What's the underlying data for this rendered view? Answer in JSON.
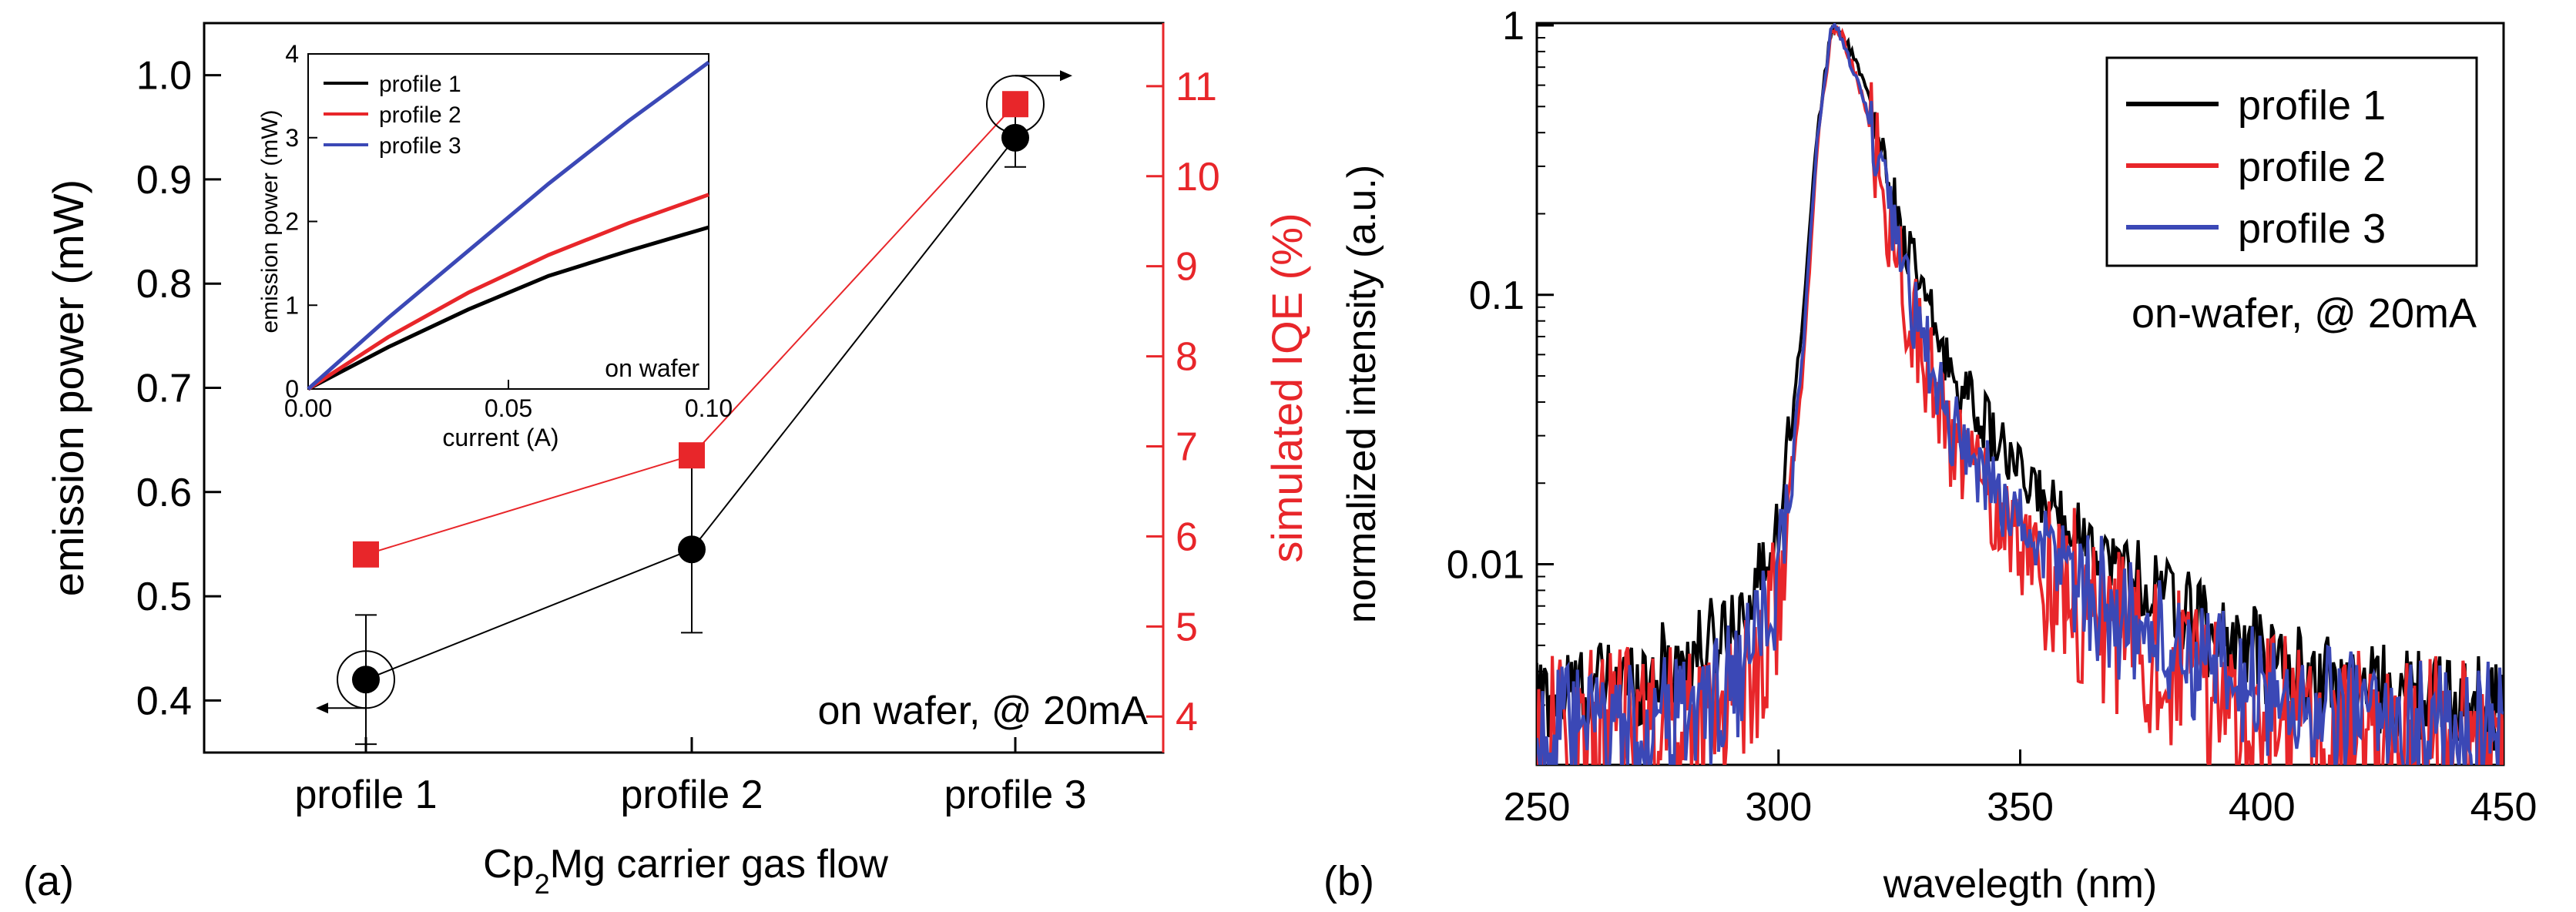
{
  "panel_a": {
    "panel_label": "(a)",
    "chart_data": {
      "type": "scatter",
      "categories": [
        "profile 1",
        "profile 2",
        "profile 3"
      ],
      "xlabel": "Cp2Mg carrier gas flow",
      "ylabel": "emission power (mW)",
      "y2label": "simulated IQE (%)",
      "ylim": [
        0.35,
        1.05
      ],
      "y2lim": [
        3.6,
        11.7
      ],
      "yticks": [
        "0.4",
        "0.5",
        "0.6",
        "0.7",
        "0.8",
        "0.9",
        "1.0"
      ],
      "y2ticks": [
        "4",
        "5",
        "6",
        "7",
        "8",
        "9",
        "10",
        "11"
      ],
      "annotation": "on wafer, @ 20mA",
      "series": [
        {
          "axis": "left",
          "color": "#000000",
          "marker": "circle",
          "values": [
            0.42,
            0.545,
            0.94
          ],
          "errors": [
            0.062,
            0.08,
            0.028
          ]
        },
        {
          "axis": "right",
          "color": "#e8262a",
          "marker": "square",
          "values": [
            5.8,
            6.9,
            10.8
          ]
        }
      ]
    },
    "inset": {
      "chart_data": {
        "type": "line",
        "xlabel": "current (A)",
        "ylabel": "emission power (mW)",
        "xlim": [
          0,
          0.1
        ],
        "ylim": [
          0,
          4
        ],
        "xticks": [
          "0.00",
          "0.05",
          "0.10"
        ],
        "yticks": [
          "0",
          "1",
          "2",
          "3",
          "4"
        ],
        "annotation": "on wafer",
        "series": [
          {
            "name": "profile 1",
            "color": "#000000",
            "x": [
              0,
              0.02,
              0.04,
              0.06,
              0.08,
              0.1
            ],
            "y": [
              0,
              0.5,
              0.95,
              1.35,
              1.65,
              1.93
            ]
          },
          {
            "name": "profile 2",
            "color": "#e8262a",
            "x": [
              0,
              0.02,
              0.04,
              0.06,
              0.08,
              0.1
            ],
            "y": [
              0,
              0.62,
              1.15,
              1.6,
              1.98,
              2.32
            ]
          },
          {
            "name": "profile 3",
            "color": "#3b48b6",
            "x": [
              0,
              0.02,
              0.04,
              0.06,
              0.08,
              0.1
            ],
            "y": [
              0,
              0.85,
              1.65,
              2.45,
              3.2,
              3.9
            ]
          }
        ]
      }
    }
  },
  "panel_b": {
    "panel_label": "(b)",
    "chart_data": {
      "type": "line",
      "xlabel": "wavelegth (nm)",
      "ylabel": "normalized intensity (a.u.)",
      "xlim": [
        250,
        450
      ],
      "ylim": [
        0.0018,
        1.02
      ],
      "yscale": "log",
      "xticks": [
        "250",
        "300",
        "350",
        "400",
        "450"
      ],
      "yticks": [
        "0.01",
        "0.1",
        "1"
      ],
      "annotation": "on-wafer, @ 20mA",
      "legend": "top-right",
      "series": [
        {
          "name": "profile 1",
          "color": "#000000",
          "noise": 0.11,
          "x": [
            250,
            270,
            285,
            295,
            300,
            305,
            308,
            311,
            313,
            318,
            325,
            335,
            350,
            370,
            390,
            410,
            430,
            450
          ],
          "y": [
            0.0032,
            0.0037,
            0.0048,
            0.0075,
            0.014,
            0.08,
            0.4,
            0.99,
            0.95,
            0.6,
            0.18,
            0.055,
            0.021,
            0.01,
            0.0055,
            0.0038,
            0.0033,
            0.003
          ]
        },
        {
          "name": "profile 2",
          "color": "#e8262a",
          "noise": 0.2,
          "x": [
            250,
            270,
            285,
            295,
            300,
            305,
            308,
            311,
            313,
            318,
            325,
            335,
            350,
            370,
            390,
            410,
            430,
            450
          ],
          "y": [
            0.0023,
            0.0024,
            0.0028,
            0.004,
            0.007,
            0.05,
            0.35,
            0.99,
            0.93,
            0.5,
            0.12,
            0.03,
            0.012,
            0.0055,
            0.0033,
            0.0024,
            0.0022,
            0.0022
          ]
        },
        {
          "name": "profile 3",
          "color": "#3b48b6",
          "noise": 0.15,
          "x": [
            250,
            270,
            285,
            295,
            300,
            305,
            308,
            311,
            313,
            318,
            325,
            335,
            350,
            370,
            390,
            410,
            430,
            450
          ],
          "y": [
            0.0024,
            0.0025,
            0.0029,
            0.0045,
            0.0085,
            0.06,
            0.38,
            0.99,
            0.92,
            0.5,
            0.13,
            0.034,
            0.014,
            0.0065,
            0.004,
            0.0029,
            0.0026,
            0.0025
          ]
        }
      ]
    }
  }
}
